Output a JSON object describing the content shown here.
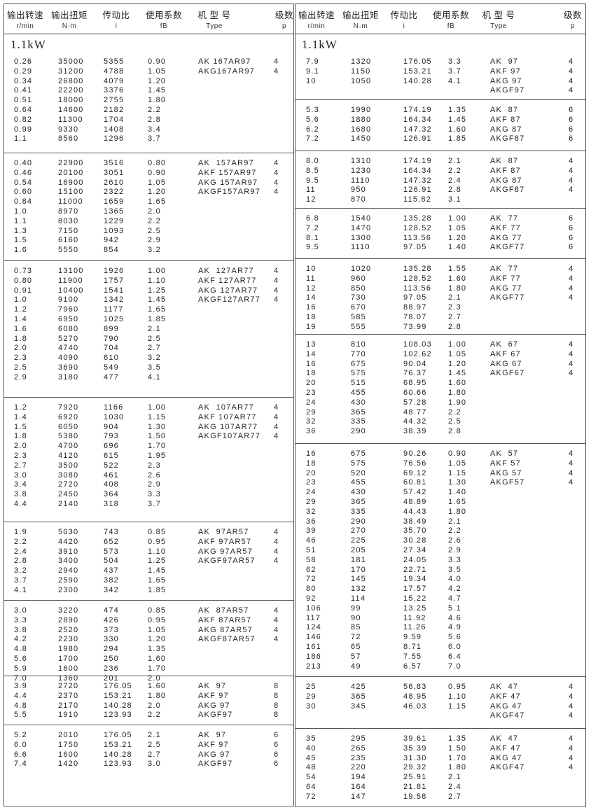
{
  "header": {
    "speed": "输出转速",
    "torque": "输出扭矩",
    "ratio": "传动比",
    "factor": "使用系数",
    "type": "机 型 号",
    "poles": "级数",
    "speed_unit": "r/min",
    "torque_unit": "N·m",
    "ratio_unit": "i",
    "factor_unit": "fB",
    "type_unit": "Type",
    "poles_unit": "p"
  },
  "left": {
    "sections": [
      {
        "title": "1.1kW",
        "rows": [
          [
            "0.26",
            "35000",
            "5355",
            "0.90",
            "AK 167AR97",
            "4"
          ],
          [
            "0.29",
            "31200",
            "4788",
            "1.05",
            "AKG167AR97",
            "4"
          ],
          [
            "0.34",
            "26800",
            "4079",
            "1.20",
            "",
            ""
          ],
          [
            "0.41",
            "22200",
            "3376",
            "1.45",
            "",
            ""
          ],
          [
            "0.51",
            "18000",
            "2755",
            "1.80",
            "",
            ""
          ],
          [
            "0.64",
            "14600",
            "2182",
            "2.2",
            "",
            ""
          ],
          [
            "0.82",
            "11300",
            "1704",
            "2.8",
            "",
            ""
          ],
          [
            "0.99",
            "9330",
            "1408",
            "3.4",
            "",
            ""
          ],
          [
            "1.1",
            "8560",
            "1296",
            "3.7",
            "",
            ""
          ]
        ]
      },
      {
        "rows": [
          [
            "0.40",
            "22900",
            "3516",
            "0.80",
            "AK  157AR97",
            "4"
          ],
          [
            "0.46",
            "20100",
            "3051",
            "0.90",
            "AKF 157AR97",
            "4"
          ],
          [
            "0.54",
            "16900",
            "2610",
            "1.05",
            "AKG 157AR97",
            "4"
          ],
          [
            "0.60",
            "15100",
            "2322",
            "1.20",
            "AKGF157AR97",
            "4"
          ],
          [
            "0.84",
            "11000",
            "1659",
            "1.65",
            "",
            ""
          ],
          [
            "1.0",
            "8970",
            "1365",
            "2.0",
            "",
            ""
          ],
          [
            "1.1",
            "8030",
            "1229",
            "2.2",
            "",
            ""
          ],
          [
            "1.3",
            "7150",
            "1093",
            "2.5",
            "",
            ""
          ],
          [
            "1.5",
            "6160",
            "942",
            "2.9",
            "",
            ""
          ],
          [
            "1.6",
            "5550",
            "854",
            "3.2",
            "",
            ""
          ]
        ]
      },
      {
        "rows": [
          [
            "0.73",
            "13100",
            "1926",
            "1.00",
            "AK  127AR77",
            "4"
          ],
          [
            "0.80",
            "11900",
            "1757",
            "1.10",
            "AKF 127AR77",
            "4"
          ],
          [
            "0.91",
            "10400",
            "1541",
            "1.25",
            "AKG 127AR77",
            "4"
          ],
          [
            "1.0",
            "9100",
            "1342",
            "1.45",
            "AKGF127AR77",
            "4"
          ],
          [
            "1.2",
            "7960",
            "1177",
            "1.65",
            "",
            ""
          ],
          [
            "1.4",
            "6950",
            "1025",
            "1.85",
            "",
            ""
          ],
          [
            "1.6",
            "6080",
            "899",
            "2.1",
            "",
            ""
          ],
          [
            "1.8",
            "5270",
            "790",
            "2.5",
            "",
            ""
          ],
          [
            "2.0",
            "4740",
            "704",
            "2.7",
            "",
            ""
          ],
          [
            "2.3",
            "4090",
            "610",
            "3.2",
            "",
            ""
          ],
          [
            "2.5",
            "3690",
            "549",
            "3.5",
            "",
            ""
          ],
          [
            "2.9",
            "3180",
            "477",
            "4.1",
            "",
            ""
          ]
        ]
      },
      {
        "rows": [
          [
            "1.2",
            "7920",
            "1166",
            "1.00",
            "AK  107AR77",
            "4"
          ],
          [
            "1.4",
            "6920",
            "1030",
            "1.15",
            "AKF 107AR77",
            "4"
          ],
          [
            "1.5",
            "6050",
            "904",
            "1.30",
            "AKG 107AR77",
            "4"
          ],
          [
            "1.8",
            "5380",
            "793",
            "1.50",
            "AKGF107AR77",
            "4"
          ],
          [
            "2.0",
            "4700",
            "696",
            "1.70",
            "",
            ""
          ],
          [
            "2.3",
            "4120",
            "615",
            "1.95",
            "",
            ""
          ],
          [
            "2.7",
            "3500",
            "522",
            "2.3",
            "",
            ""
          ],
          [
            "3.0",
            "3080",
            "461",
            "2.6",
            "",
            ""
          ],
          [
            "3.4",
            "2720",
            "408",
            "2.9",
            "",
            ""
          ],
          [
            "3.8",
            "2450",
            "364",
            "3.3",
            "",
            ""
          ],
          [
            "4.4",
            "2140",
            "318",
            "3.7",
            "",
            ""
          ]
        ]
      },
      {
        "rows": [
          [
            "1.9",
            "5030",
            "743",
            "0.85",
            "AK  97AR57",
            "4"
          ],
          [
            "2.2",
            "4420",
            "652",
            "0.95",
            "AKF 97AR57",
            "4"
          ],
          [
            "2.4",
            "3910",
            "573",
            "1.10",
            "AKG 97AR57",
            "4"
          ],
          [
            "2.8",
            "3400",
            "504",
            "1.25",
            "AKGF97AR57",
            "4"
          ],
          [
            "3.2",
            "2940",
            "437",
            "1.45",
            "",
            ""
          ],
          [
            "3.7",
            "2590",
            "382",
            "1.65",
            "",
            ""
          ],
          [
            "4.1",
            "2300",
            "342",
            "1.85",
            "",
            ""
          ]
        ]
      },
      {
        "rows": [
          [
            "3.0",
            "3220",
            "474",
            "0.85",
            "AK  87AR57",
            "4"
          ],
          [
            "3.3",
            "2890",
            "426",
            "0.95",
            "AKF 87AR57",
            "4"
          ],
          [
            "3.8",
            "2520",
            "373",
            "1.05",
            "AKG 87AR57",
            "4"
          ],
          [
            "4.2",
            "2230",
            "330",
            "1.20",
            "AKGF87AR57",
            "4"
          ],
          [
            "4.8",
            "1980",
            "294",
            "1.35",
            "",
            ""
          ],
          [
            "5.6",
            "1700",
            "250",
            "1.60",
            "",
            ""
          ],
          [
            "5.9",
            "1600",
            "236",
            "1.70",
            "",
            ""
          ],
          [
            "7.0",
            "1360",
            "201",
            "2.0",
            "",
            ""
          ]
        ]
      },
      {
        "rows": [
          [
            "3.9",
            "2720",
            "176.05",
            "1.60",
            "AK  97",
            "8"
          ],
          [
            "4.4",
            "2370",
            "153.21",
            "1.80",
            "AKF 97",
            "8"
          ],
          [
            "4.8",
            "2170",
            "140.28",
            "2.0",
            "AKG 97",
            "8"
          ],
          [
            "5.5",
            "1910",
            "123.93",
            "2.2",
            "AKGF97",
            "8"
          ]
        ]
      },
      {
        "rows": [
          [
            "5.2",
            "2010",
            "176.05",
            "2.1",
            "AK  97",
            "6"
          ],
          [
            "6.0",
            "1750",
            "153.21",
            "2.5",
            "AKF 97",
            "6"
          ],
          [
            "6.6",
            "1600",
            "140.28",
            "2.7",
            "AKG 97",
            "6"
          ],
          [
            "7.4",
            "1420",
            "123.93",
            "3.0",
            "AKGF97",
            "6"
          ]
        ]
      }
    ]
  },
  "right": {
    "sections": [
      {
        "title": "1.1kW",
        "rows": [
          [
            "7.9",
            "1320",
            "176.05",
            "3.3",
            "AK  97",
            "4"
          ],
          [
            "9.1",
            "1150",
            "153.21",
            "3.7",
            "AKF 97",
            "4"
          ],
          [
            "10",
            "1050",
            "140.28",
            "4.1",
            "AKG 97",
            "4"
          ],
          [
            "",
            "",
            "",
            "",
            "AKGF97",
            "4"
          ]
        ]
      },
      {
        "rows": [
          [
            "5.3",
            "1990",
            "174.19",
            "1.35",
            "AK  87",
            "6"
          ],
          [
            "5.6",
            "1880",
            "164.34",
            "1.45",
            "AKF 87",
            "6"
          ],
          [
            "6.2",
            "1680",
            "147.32",
            "1.60",
            "AKG 87",
            "6"
          ],
          [
            "7.2",
            "1450",
            "126.91",
            "1.85",
            "AKGF87",
            "6"
          ]
        ]
      },
      {
        "rows": [
          [
            "8.0",
            "1310",
            "174.19",
            "2.1",
            "AK  87",
            "4"
          ],
          [
            "8.5",
            "1230",
            "164.34",
            "2.2",
            "AKF 87",
            "4"
          ],
          [
            "9.5",
            "1110",
            "147.32",
            "2.4",
            "AKG 87",
            "4"
          ],
          [
            "11",
            "950",
            "126.91",
            "2.8",
            "AKGF87",
            "4"
          ],
          [
            "12",
            "870",
            "115.82",
            "3.1",
            "",
            ""
          ]
        ]
      },
      {
        "rows": [
          [
            "6.8",
            "1540",
            "135.28",
            "1.00",
            "AK  77",
            "6"
          ],
          [
            "7.2",
            "1470",
            "128.52",
            "1.05",
            "AKF 77",
            "6"
          ],
          [
            "8.1",
            "1300",
            "113.56",
            "1.20",
            "AKG 77",
            "6"
          ],
          [
            "9.5",
            "1110",
            "97.05",
            "1.40",
            "AKGF77",
            "6"
          ]
        ]
      },
      {
        "rows": [
          [
            "10",
            "1020",
            "135.28",
            "1.55",
            "AK  77",
            "4"
          ],
          [
            "11",
            "960",
            "128.52",
            "1.60",
            "AKF 77",
            "4"
          ],
          [
            "12",
            "850",
            "113.56",
            "1.80",
            "AKG 77",
            "4"
          ],
          [
            "14",
            "730",
            "97.05",
            "2.1",
            "AKGF77",
            "4"
          ],
          [
            "16",
            "670",
            "88.97",
            "2.3",
            "",
            ""
          ],
          [
            "18",
            "585",
            "78.07",
            "2.7",
            "",
            ""
          ],
          [
            "19",
            "555",
            "73.99",
            "2.8",
            "",
            ""
          ]
        ]
      },
      {
        "rows": [
          [
            "13",
            "810",
            "108.03",
            "1.00",
            "AK  67",
            "4"
          ],
          [
            "14",
            "770",
            "102.62",
            "1.05",
            "AKF 67",
            "4"
          ],
          [
            "16",
            "675",
            "90.04",
            "1.20",
            "AKG 67",
            "4"
          ],
          [
            "18",
            "575",
            "76.37",
            "1.45",
            "AKGF67",
            "4"
          ],
          [
            "20",
            "515",
            "68.95",
            "1.60",
            "",
            ""
          ],
          [
            "23",
            "455",
            "60.66",
            "1.80",
            "",
            ""
          ],
          [
            "24",
            "430",
            "57.28",
            "1.90",
            "",
            ""
          ],
          [
            "29",
            "365",
            "48.77",
            "2.2",
            "",
            ""
          ],
          [
            "32",
            "335",
            "44.32",
            "2.5",
            "",
            ""
          ],
          [
            "36",
            "290",
            "38.39",
            "2.8",
            "",
            ""
          ]
        ]
      },
      {
        "rows": [
          [
            "16",
            "675",
            "90.26",
            "0.90",
            "AK  57",
            "4"
          ],
          [
            "18",
            "575",
            "76.56",
            "1.05",
            "AKF 57",
            "4"
          ],
          [
            "20",
            "520",
            "69.12",
            "1.15",
            "AKG 57",
            "4"
          ],
          [
            "23",
            "455",
            "60.81",
            "1.30",
            "AKGF57",
            "4"
          ],
          [
            "24",
            "430",
            "57.42",
            "1.40",
            "",
            ""
          ],
          [
            "29",
            "365",
            "48.89",
            "1.65",
            "",
            ""
          ],
          [
            "32",
            "335",
            "44.43",
            "1.80",
            "",
            ""
          ],
          [
            "36",
            "290",
            "38.49",
            "2.1",
            "",
            ""
          ],
          [
            "39",
            "270",
            "35.70",
            "2.2",
            "",
            ""
          ],
          [
            "46",
            "225",
            "30.28",
            "2.6",
            "",
            ""
          ],
          [
            "51",
            "205",
            "27.34",
            "2.9",
            "",
            ""
          ],
          [
            "58",
            "181",
            "24.05",
            "3.3",
            "",
            ""
          ],
          [
            "62",
            "170",
            "22.71",
            "3.5",
            "",
            ""
          ],
          [
            "72",
            "145",
            "19.34",
            "4.0",
            "",
            ""
          ],
          [
            "80",
            "132",
            "17.57",
            "4.2",
            "",
            ""
          ],
          [
            "92",
            "114",
            "15.22",
            "4.7",
            "",
            ""
          ],
          [
            "106",
            "99",
            "13.25",
            "5.1",
            "",
            ""
          ],
          [
            "117",
            "90",
            "11.92",
            "4.6",
            "",
            ""
          ],
          [
            "124",
            "85",
            "11.26",
            "4.9",
            "",
            ""
          ],
          [
            "146",
            "72",
            "9.59",
            "5.6",
            "",
            ""
          ],
          [
            "161",
            "65",
            "8.71",
            "6.0",
            "",
            ""
          ],
          [
            "186",
            "57",
            "7.55",
            "6.4",
            "",
            ""
          ],
          [
            "213",
            "49",
            "6.57",
            "7.0",
            "",
            ""
          ]
        ]
      },
      {
        "rows": [
          [
            "25",
            "425",
            "56.83",
            "0.95",
            "AK  47",
            "4"
          ],
          [
            "29",
            "365",
            "48.95",
            "1.10",
            "AKF 47",
            "4"
          ],
          [
            "30",
            "345",
            "46.03",
            "1.15",
            "AKG 47",
            "4"
          ],
          [
            "",
            "",
            "",
            "",
            "AKGF47",
            "4"
          ]
        ]
      },
      {
        "rows": [
          [
            "35",
            "295",
            "39.61",
            "1.35",
            "AK  47",
            "4"
          ],
          [
            "40",
            "265",
            "35.39",
            "1.50",
            "AKF 47",
            "4"
          ],
          [
            "45",
            "235",
            "31.30",
            "1.70",
            "AKG 47",
            "4"
          ],
          [
            "48",
            "220",
            "29.32",
            "1.80",
            "AKGF47",
            "4"
          ],
          [
            "54",
            "194",
            "25.91",
            "2.1",
            "",
            ""
          ],
          [
            "64",
            "164",
            "21.81",
            "2.4",
            "",
            ""
          ],
          [
            "72",
            "147",
            "19.58",
            "2.7",
            "",
            ""
          ]
        ]
      }
    ]
  }
}
